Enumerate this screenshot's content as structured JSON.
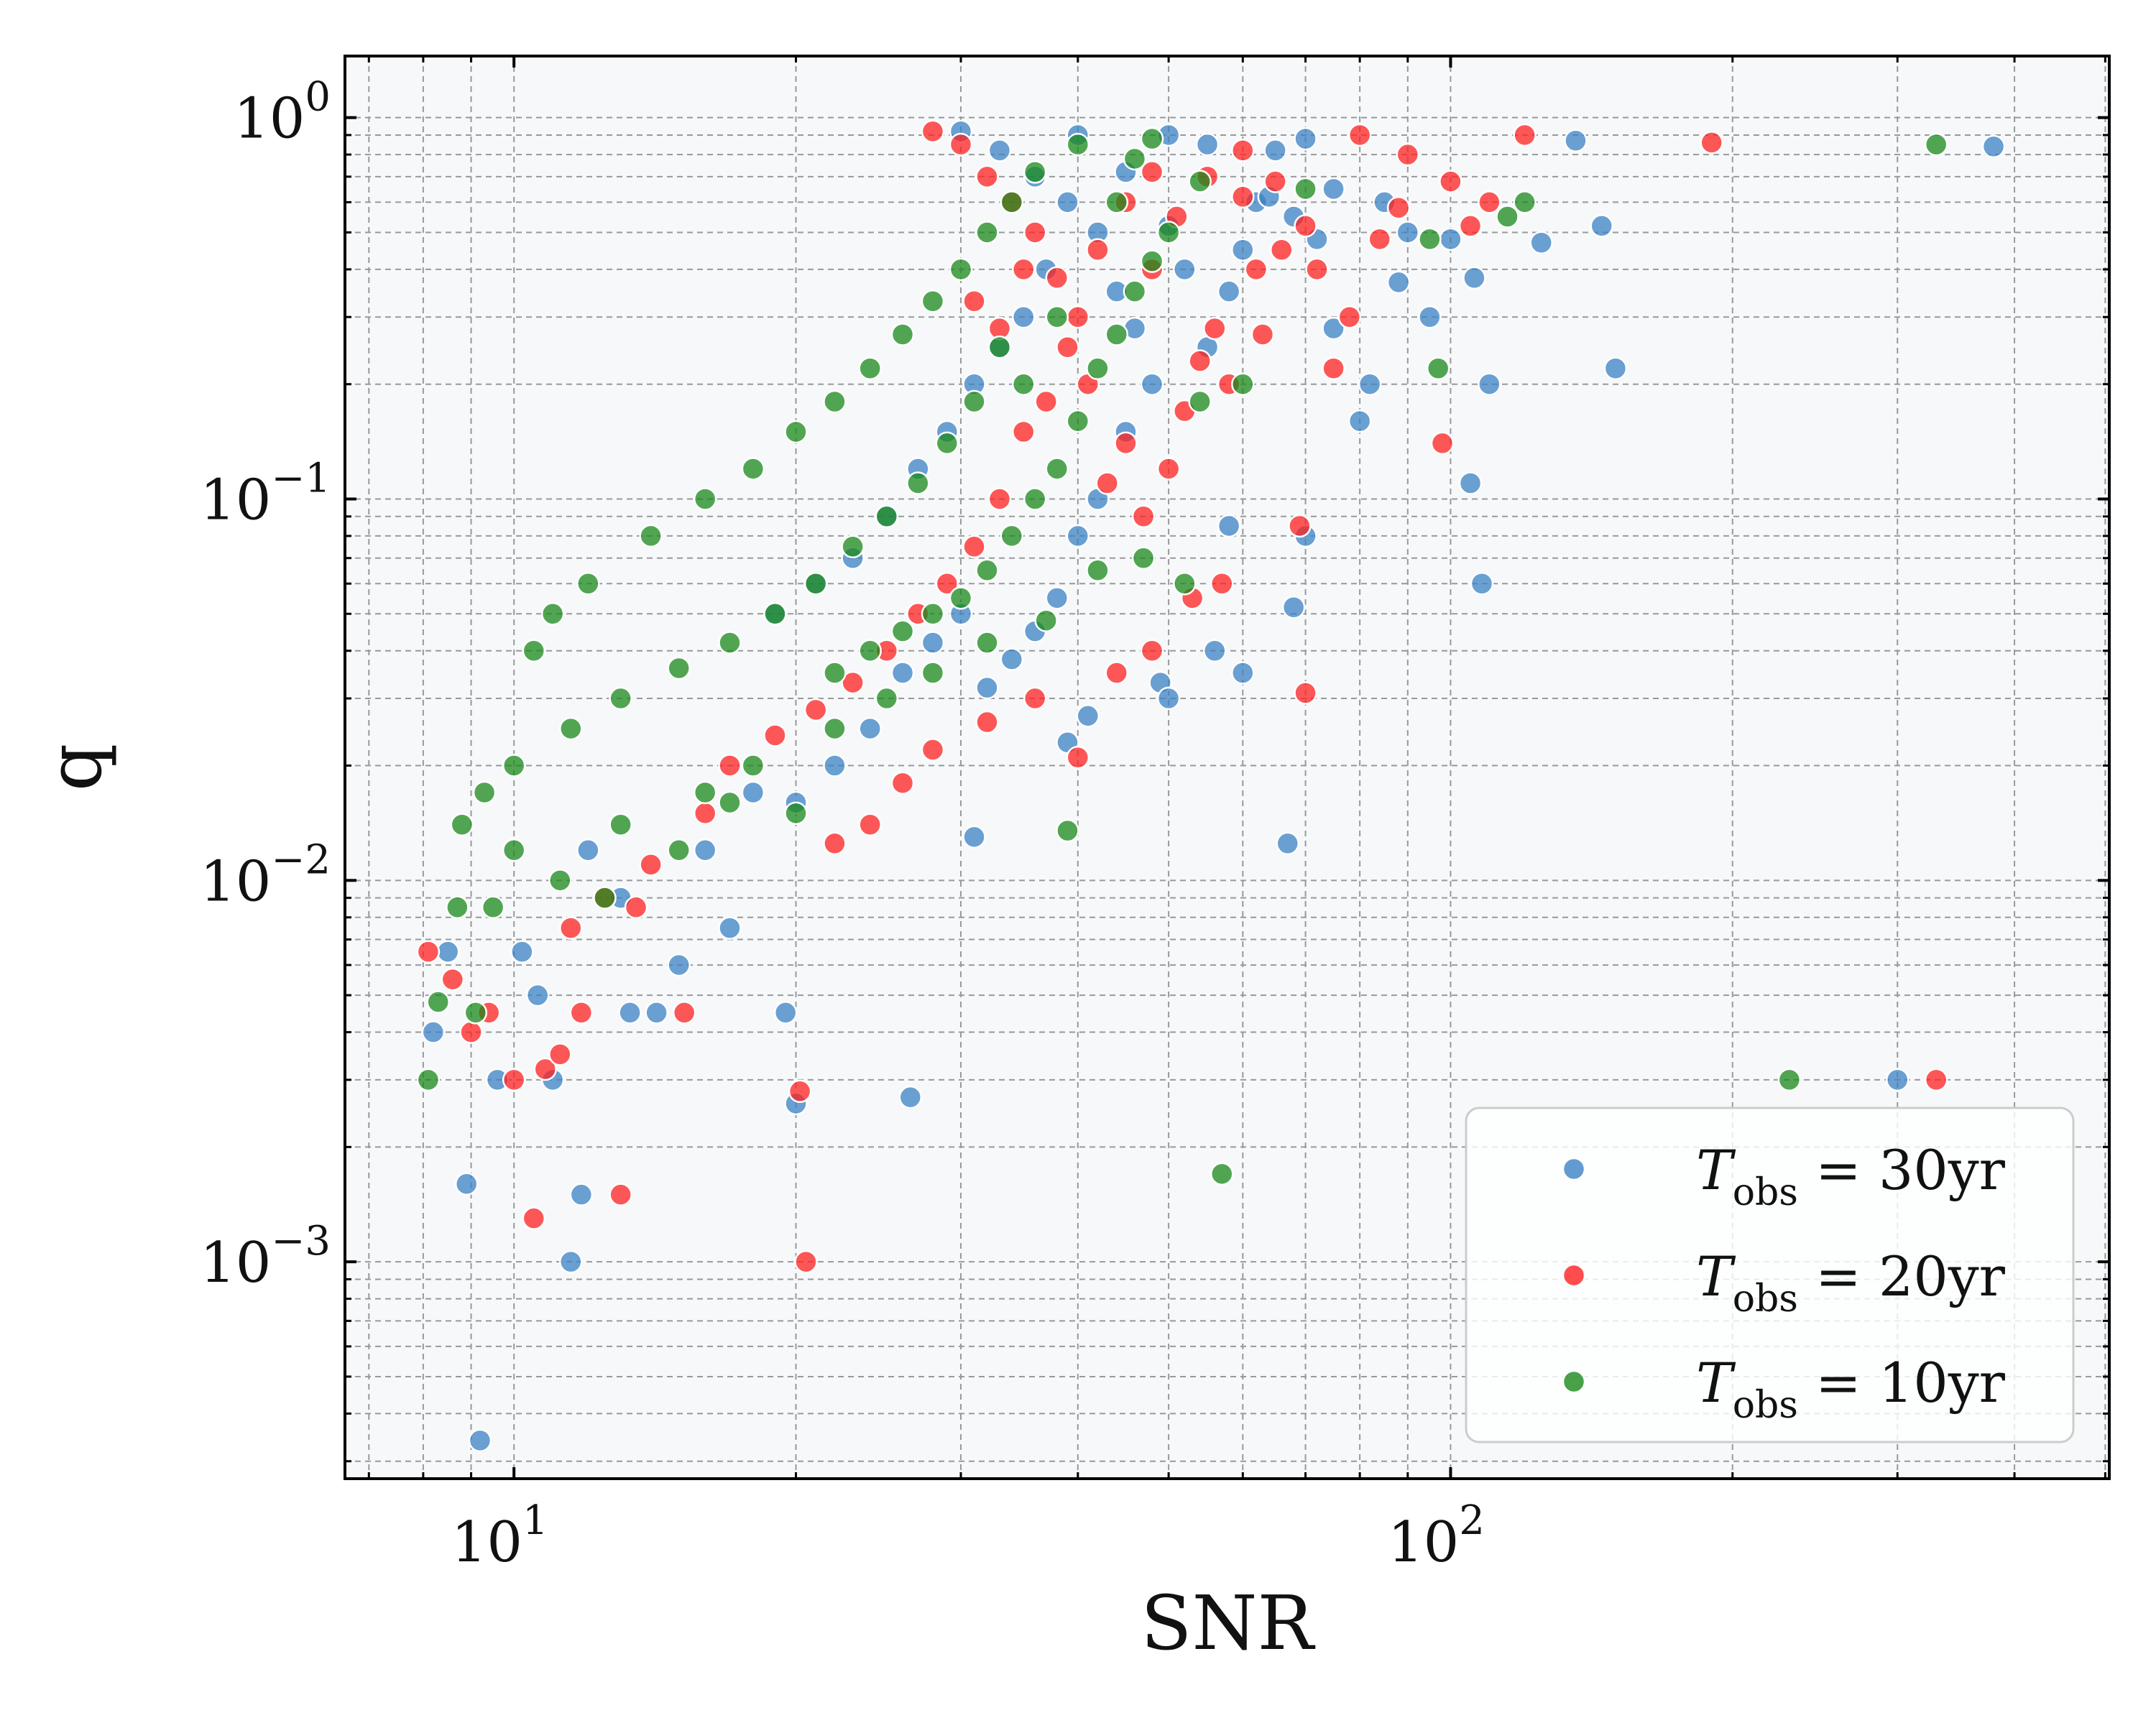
{
  "chart_data": {
    "type": "scatter",
    "xlabel": "SNR",
    "ylabel": "q",
    "xscale": "log",
    "yscale": "log",
    "xlim": [
      6.6,
      505
    ],
    "ylim": [
      0.00027,
      1.45
    ],
    "grid": true,
    "legend_placement": "lower right",
    "x_ticks": [
      {
        "value": 10,
        "base": "10",
        "exp": "1"
      },
      {
        "value": 100,
        "base": "10",
        "exp": "2"
      }
    ],
    "y_ticks": [
      {
        "value": 1,
        "base": "10",
        "exp": "0"
      },
      {
        "value": 0.1,
        "base": "10",
        "exp": "−1"
      },
      {
        "value": 0.01,
        "base": "10",
        "exp": "−2"
      },
      {
        "value": 0.001,
        "base": "10",
        "exp": "−3"
      }
    ],
    "series": [
      {
        "name": "T_obs = 30yr",
        "legend": {
          "T": "T",
          "sub": "obs",
          "rest": " = 30yr"
        },
        "color": "#3b82c4",
        "points": [
          [
            8.2,
            0.004
          ],
          [
            8.5,
            0.0065
          ],
          [
            8.9,
            0.0016
          ],
          [
            9.6,
            0.003
          ],
          [
            11.5,
            0.001
          ],
          [
            11.8,
            0.0015
          ],
          [
            9.2,
            0.00034
          ],
          [
            10.2,
            0.0065
          ],
          [
            10.6,
            0.005
          ],
          [
            11,
            0.003
          ],
          [
            13.3,
            0.0045
          ],
          [
            15,
            0.006
          ],
          [
            14.2,
            0.0045
          ],
          [
            19.5,
            0.0045
          ],
          [
            20,
            0.0026
          ],
          [
            26.5,
            0.0027
          ],
          [
            31,
            0.013
          ],
          [
            39,
            0.023
          ],
          [
            41,
            0.027
          ],
          [
            49,
            0.033
          ],
          [
            50,
            0.03
          ],
          [
            56,
            0.04
          ],
          [
            58,
            0.085
          ],
          [
            68,
            0.052
          ],
          [
            67,
            0.0125
          ],
          [
            70,
            0.08
          ],
          [
            105,
            0.11
          ],
          [
            108,
            0.06
          ],
          [
            110,
            0.2
          ],
          [
            125,
            0.47
          ],
          [
            145,
            0.52
          ],
          [
            150,
            0.22
          ],
          [
            136,
            0.87
          ],
          [
            380,
            0.84
          ],
          [
            300,
            0.003
          ],
          [
            95,
            0.3
          ],
          [
            88,
            0.37
          ],
          [
            80,
            0.16
          ],
          [
            75,
            0.28
          ],
          [
            82,
            0.2
          ],
          [
            72,
            0.48
          ],
          [
            68,
            0.55
          ],
          [
            62,
            0.6
          ],
          [
            60,
            0.45
          ],
          [
            58,
            0.35
          ],
          [
            55,
            0.25
          ],
          [
            52,
            0.4
          ],
          [
            50,
            0.52
          ],
          [
            48,
            0.2
          ],
          [
            45,
            0.15
          ],
          [
            42,
            0.1
          ],
          [
            40,
            0.08
          ],
          [
            38,
            0.055
          ],
          [
            36,
            0.045
          ],
          [
            34,
            0.038
          ],
          [
            32,
            0.032
          ],
          [
            30,
            0.05
          ],
          [
            28,
            0.042
          ],
          [
            26,
            0.035
          ],
          [
            24,
            0.025
          ],
          [
            22,
            0.02
          ],
          [
            20,
            0.016
          ],
          [
            18,
            0.017
          ],
          [
            17,
            0.0075
          ],
          [
            16,
            0.012
          ],
          [
            13,
            0.009
          ],
          [
            12,
            0.012
          ],
          [
            60,
            0.035
          ],
          [
            64,
            0.62
          ],
          [
            70,
            0.88
          ],
          [
            85,
            0.6
          ],
          [
            90,
            0.5
          ],
          [
            100,
            0.48
          ],
          [
            106,
            0.38
          ],
          [
            45,
            0.72
          ],
          [
            40,
            0.9
          ],
          [
            50,
            0.9
          ],
          [
            55,
            0.85
          ],
          [
            65,
            0.82
          ],
          [
            75,
            0.65
          ],
          [
            37,
            0.4
          ],
          [
            35,
            0.3
          ],
          [
            33,
            0.25
          ],
          [
            31,
            0.2
          ],
          [
            29,
            0.15
          ],
          [
            27,
            0.12
          ],
          [
            25,
            0.09
          ],
          [
            23,
            0.07
          ],
          [
            21,
            0.06
          ],
          [
            19,
            0.05
          ],
          [
            44,
            0.35
          ],
          [
            46,
            0.28
          ],
          [
            42,
            0.5
          ],
          [
            39,
            0.6
          ],
          [
            36,
            0.7
          ],
          [
            33,
            0.82
          ],
          [
            30,
            0.92
          ]
        ]
      },
      {
        "name": "T_obs = 20yr",
        "legend": {
          "T": "T",
          "sub": "obs",
          "rest": " = 20yr"
        },
        "color": "#ff2020",
        "points": [
          [
            8.1,
            0.0065
          ],
          [
            8.6,
            0.0055
          ],
          [
            9.0,
            0.004
          ],
          [
            9.4,
            0.0045
          ],
          [
            10.0,
            0.003
          ],
          [
            10.5,
            0.0013
          ],
          [
            10.8,
            0.0032
          ],
          [
            11.2,
            0.0035
          ],
          [
            11.8,
            0.0045
          ],
          [
            13,
            0.0015
          ],
          [
            13.5,
            0.0085
          ],
          [
            15.2,
            0.0045
          ],
          [
            20.2,
            0.0028
          ],
          [
            20.5,
            0.001
          ],
          [
            22,
            0.0125
          ],
          [
            24,
            0.014
          ],
          [
            26,
            0.018
          ],
          [
            28,
            0.022
          ],
          [
            32,
            0.026
          ],
          [
            36,
            0.03
          ],
          [
            40,
            0.021
          ],
          [
            44,
            0.035
          ],
          [
            48,
            0.04
          ],
          [
            53,
            0.055
          ],
          [
            57,
            0.06
          ],
          [
            69,
            0.085
          ],
          [
            70,
            0.031
          ],
          [
            75,
            0.22
          ],
          [
            78,
            0.3
          ],
          [
            84,
            0.48
          ],
          [
            88,
            0.58
          ],
          [
            90,
            0.8
          ],
          [
            98,
            0.14
          ],
          [
            100,
            0.68
          ],
          [
            105,
            0.52
          ],
          [
            110,
            0.6
          ],
          [
            120,
            0.9
          ],
          [
            190,
            0.86
          ],
          [
            330,
            0.003
          ],
          [
            60,
            0.62
          ],
          [
            62,
            0.4
          ],
          [
            63,
            0.27
          ],
          [
            58,
            0.2
          ],
          [
            56,
            0.28
          ],
          [
            54,
            0.23
          ],
          [
            52,
            0.17
          ],
          [
            50,
            0.12
          ],
          [
            47,
            0.09
          ],
          [
            45,
            0.14
          ],
          [
            43,
            0.11
          ],
          [
            41,
            0.2
          ],
          [
            40,
            0.3
          ],
          [
            38,
            0.38
          ],
          [
            36,
            0.5
          ],
          [
            34,
            0.6
          ],
          [
            32,
            0.7
          ],
          [
            30,
            0.85
          ],
          [
            28,
            0.92
          ],
          [
            45,
            0.6
          ],
          [
            48,
            0.72
          ],
          [
            51,
            0.55
          ],
          [
            55,
            0.7
          ],
          [
            66,
            0.45
          ],
          [
            72,
            0.4
          ],
          [
            80,
            0.9
          ],
          [
            35,
            0.15
          ],
          [
            33,
            0.1
          ],
          [
            31,
            0.075
          ],
          [
            29,
            0.06
          ],
          [
            27,
            0.05
          ],
          [
            25,
            0.04
          ],
          [
            23,
            0.033
          ],
          [
            21,
            0.028
          ],
          [
            19,
            0.024
          ],
          [
            17,
            0.02
          ],
          [
            16,
            0.015
          ],
          [
            14,
            0.011
          ],
          [
            12.5,
            0.009
          ],
          [
            11.5,
            0.0075
          ],
          [
            42,
            0.45
          ],
          [
            39,
            0.25
          ],
          [
            37,
            0.18
          ],
          [
            35,
            0.4
          ],
          [
            33,
            0.28
          ],
          [
            31,
            0.33
          ],
          [
            60,
            0.82
          ],
          [
            65,
            0.68
          ],
          [
            70,
            0.52
          ],
          [
            48,
            0.4
          ]
        ]
      },
      {
        "name": "T_obs = 10yr",
        "legend": {
          "T": "T",
          "sub": "obs",
          "rest": " = 10yr"
        },
        "color": "#1a8a1a",
        "points": [
          [
            8.1,
            0.003
          ],
          [
            8.3,
            0.0048
          ],
          [
            8.7,
            0.0085
          ],
          [
            9.1,
            0.0045
          ],
          [
            9.5,
            0.0085
          ],
          [
            10,
            0.012
          ],
          [
            11.2,
            0.01
          ],
          [
            12.5,
            0.009
          ],
          [
            13,
            0.014
          ],
          [
            15,
            0.012
          ],
          [
            16,
            0.017
          ],
          [
            17,
            0.016
          ],
          [
            18,
            0.02
          ],
          [
            20,
            0.015
          ],
          [
            22,
            0.025
          ],
          [
            25,
            0.03
          ],
          [
            28,
            0.035
          ],
          [
            32,
            0.042
          ],
          [
            37,
            0.048
          ],
          [
            39,
            0.0135
          ],
          [
            42,
            0.065
          ],
          [
            47,
            0.07
          ],
          [
            52,
            0.06
          ],
          [
            54,
            0.18
          ],
          [
            57,
            0.0017
          ],
          [
            60,
            0.2
          ],
          [
            70,
            0.65
          ],
          [
            95,
            0.48
          ],
          [
            97,
            0.22
          ],
          [
            115,
            0.55
          ],
          [
            120,
            0.6
          ],
          [
            230,
            0.003
          ],
          [
            330,
            0.85
          ],
          [
            54,
            0.68
          ],
          [
            50,
            0.5
          ],
          [
            48,
            0.42
          ],
          [
            46,
            0.35
          ],
          [
            44,
            0.27
          ],
          [
            42,
            0.22
          ],
          [
            40,
            0.16
          ],
          [
            38,
            0.12
          ],
          [
            36,
            0.1
          ],
          [
            34,
            0.08
          ],
          [
            32,
            0.065
          ],
          [
            30,
            0.055
          ],
          [
            28,
            0.05
          ],
          [
            26,
            0.045
          ],
          [
            24,
            0.04
          ],
          [
            22,
            0.035
          ],
          [
            44,
            0.6
          ],
          [
            46,
            0.78
          ],
          [
            48,
            0.88
          ],
          [
            40,
            0.85
          ],
          [
            36,
            0.72
          ],
          [
            34,
            0.6
          ],
          [
            32,
            0.5
          ],
          [
            30,
            0.4
          ],
          [
            28,
            0.33
          ],
          [
            26,
            0.27
          ],
          [
            24,
            0.22
          ],
          [
            22,
            0.18
          ],
          [
            20,
            0.15
          ],
          [
            18,
            0.12
          ],
          [
            16,
            0.1
          ],
          [
            14,
            0.08
          ],
          [
            12,
            0.06
          ],
          [
            11,
            0.05
          ],
          [
            10.5,
            0.04
          ],
          [
            38,
            0.3
          ],
          [
            35,
            0.2
          ],
          [
            33,
            0.25
          ],
          [
            31,
            0.18
          ],
          [
            29,
            0.14
          ],
          [
            27,
            0.11
          ],
          [
            25,
            0.09
          ],
          [
            23,
            0.075
          ],
          [
            21,
            0.06
          ],
          [
            19,
            0.05
          ],
          [
            17,
            0.042
          ],
          [
            15,
            0.036
          ],
          [
            13,
            0.03
          ],
          [
            11.5,
            0.025
          ],
          [
            10,
            0.02
          ],
          [
            9.3,
            0.017
          ],
          [
            8.8,
            0.014
          ]
        ]
      }
    ]
  }
}
